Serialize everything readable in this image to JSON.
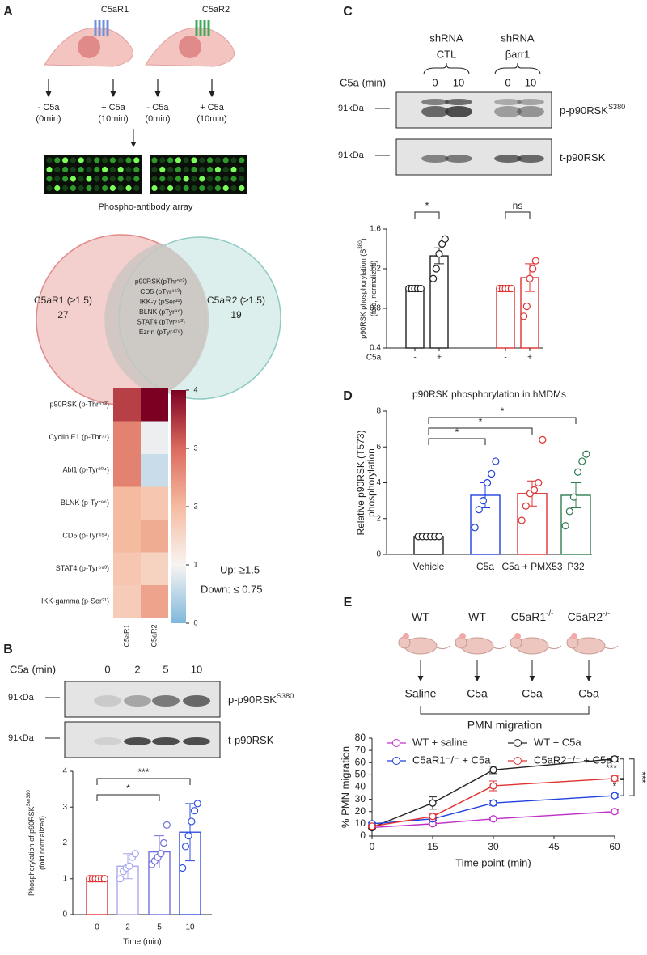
{
  "panel_labels": [
    "A",
    "B",
    "C",
    "D",
    "E"
  ],
  "diagram_a": {
    "receptors": [
      "C5aR1",
      "C5aR2"
    ],
    "treatments": [
      [
        "- C5a",
        "(0min)"
      ],
      [
        "+ C5a",
        "(10min)"
      ],
      [
        "- C5a",
        "(0min)"
      ],
      [
        "+ C5a",
        "(10min)"
      ]
    ],
    "array_caption": "Phospho-antibody array"
  },
  "venn": {
    "left_label": "C5aR1 (≥1.5)",
    "left_count": 27,
    "right_label": "C5aR2 (≥1.5)",
    "right_count": 19,
    "overlap": [
      "p90RSK(pThr⁵⁷³)",
      "CD5 (pTyr⁴⁵³)",
      "IKK-γ (pSer³¹)",
      "BLNK (pTyr⁹⁶)",
      "STAT4 (pTyr⁶⁹³)",
      "Ezrin (pTyr⁴⁷⁸)"
    ]
  },
  "blot_b": {
    "treatment_label": "C5a (min)",
    "lanes": [
      "0",
      "2",
      "5",
      "10"
    ],
    "size_labels": [
      "91kDa",
      "91kDa"
    ],
    "bands": [
      {
        "text": "p-p90RSK",
        "sup": "S380"
      },
      {
        "text": "t-p90RSK"
      }
    ]
  },
  "blot_c": {
    "groups": [
      [
        "shRNA",
        "CTL"
      ],
      [
        "shRNA",
        "βarr1"
      ]
    ],
    "treatment_label": "C5a (min)",
    "lanes": [
      "0",
      "10",
      "0",
      "10"
    ],
    "size_labels": [
      "91kDa",
      "91kDa"
    ],
    "bands": [
      {
        "text": "p-p90RSK",
        "sup": "S380"
      },
      {
        "text": "t-p90RSK"
      }
    ]
  },
  "diagram_e": {
    "genotypes": [
      {
        "text": "WT"
      },
      {
        "text": "WT"
      },
      {
        "text": "C5aR1",
        "sup": "-/-"
      },
      {
        "text": "C5aR2",
        "sup": "-/-"
      }
    ],
    "treatments": [
      "Saline",
      "C5a",
      "C5a",
      "C5a"
    ],
    "caption": "PMN migration"
  },
  "chart_data": [
    {
      "type": "heatmap",
      "categories": [
        "p90RSK (p-Thr⁵⁷³)",
        "Cyclin E1 (p-Thr⁷⁷)",
        "Abl1 (p-Tyr²⁰⁴)",
        "BLNK (p-Tyr⁹⁶)",
        "CD5 (p-Tyr⁴⁵³)",
        "STAT4 (p-Tyr⁶⁹³)",
        "IKK-gamma (p-Ser³¹)"
      ],
      "columns": [
        "C5aR1",
        "C5aR2"
      ],
      "values": [
        [
          3.4,
          4.0
        ],
        [
          2.7,
          0.9
        ],
        [
          2.7,
          0.6
        ],
        [
          2.0,
          1.8
        ],
        [
          2.0,
          2.2
        ],
        [
          1.8,
          1.6
        ],
        [
          1.7,
          2.3
        ]
      ],
      "vlim": [
        0,
        4
      ],
      "ticks": [
        0,
        1,
        2,
        3,
        4
      ],
      "annotations": [
        "Up: ≥1.5",
        "Down: ≤ 0.75"
      ]
    },
    {
      "type": "bar",
      "categories": [
        "0",
        "2",
        "5",
        "10"
      ],
      "values": [
        1.0,
        1.35,
        1.75,
        2.3
      ],
      "errors": [
        0,
        0.35,
        0.45,
        0.8
      ],
      "points": [
        [
          1,
          1,
          1,
          1,
          1,
          1
        ],
        [
          1.0,
          1.2,
          1.3,
          1.35,
          1.6,
          1.7
        ],
        [
          1.4,
          1.5,
          1.6,
          1.7,
          2.0,
          2.5
        ],
        [
          1.3,
          1.9,
          2.2,
          2.6,
          2.9,
          3.1
        ]
      ],
      "colors": [
        "#e03030",
        "#a8a8f0",
        "#7070e0",
        "#3050e0"
      ],
      "ylim": [
        0,
        4
      ],
      "yticks": [
        0,
        1,
        2,
        3,
        4
      ],
      "ylabel": [
        {
          "text": "Phosphorylation of p90RSK",
          "sup": "Ser380"
        },
        {
          "text": "(fold normalized)"
        }
      ],
      "xlabel": "Time (min)",
      "annotations": [
        "*",
        "***"
      ]
    },
    {
      "type": "bar",
      "categories": [
        "-",
        "+",
        "-",
        "+"
      ],
      "values": [
        1.0,
        1.33,
        1.0,
        1.11
      ],
      "errors": [
        0,
        0.08,
        0,
        0.14
      ],
      "points": [
        [
          1,
          1,
          1,
          1,
          1
        ],
        [
          1.1,
          1.2,
          1.35,
          1.45,
          1.5
        ],
        [
          1,
          1,
          1,
          1,
          1
        ],
        [
          0.72,
          0.82,
          1.1,
          1.2,
          1.28
        ]
      ],
      "colors": [
        "#222222",
        "#222222",
        "#e03030",
        "#e03030"
      ],
      "ylim": [
        0.4,
        1.6
      ],
      "yticks": [
        0.4,
        0.8,
        1.2,
        1.6
      ],
      "ylabel": [
        {
          "text": "p90RSK phosphorylation (S",
          "sup": "380",
          "tail": ")"
        },
        {
          "text": "(fold, normalized)"
        }
      ],
      "xlabel": "C5a",
      "annotations": [
        "*",
        "ns"
      ]
    },
    {
      "type": "bar",
      "title": "p90RSK phosphorylation in hMDMs",
      "categories": [
        "Vehicle",
        "C5a",
        "C5a + PMX53",
        "P32"
      ],
      "values": [
        1.0,
        3.3,
        3.4,
        3.3
      ],
      "errors": [
        0,
        0.7,
        0.7,
        0.7
      ],
      "points": [
        [
          1,
          1,
          1,
          1,
          1,
          1
        ],
        [
          1.5,
          2.5,
          3.0,
          4.0,
          4.5,
          5.2
        ],
        [
          1.9,
          2.7,
          3.4,
          3.6,
          4.0,
          6.4
        ],
        [
          1.6,
          2.4,
          3.2,
          4.6,
          5.2,
          5.6
        ]
      ],
      "colors": [
        "#222222",
        "#2040e0",
        "#e03030",
        "#2e7d50"
      ],
      "ylim": [
        0,
        8
      ],
      "yticks": [
        0,
        2,
        4,
        6,
        8
      ],
      "ylabel": [
        {
          "text": "Relative p90RSK (T573)"
        },
        {
          "text": "phosphorylation"
        }
      ],
      "annotations": [
        "*",
        "*",
        "*"
      ]
    },
    {
      "type": "line",
      "x": [
        0,
        15,
        30,
        60
      ],
      "xlim": [
        0,
        60
      ],
      "xticks": [
        0,
        15,
        30,
        45,
        60
      ],
      "ylim": [
        0,
        80
      ],
      "yticks": [
        0,
        10,
        20,
        30,
        40,
        50,
        60,
        70,
        80
      ],
      "xlabel": "Time point (min)",
      "ylabel": "% PMN migration",
      "annotations": [
        "***",
        "*",
        "***"
      ],
      "series": [
        {
          "name": "WT + saline",
          "color": "#c030c8",
          "values": [
            7,
            10,
            14,
            20
          ],
          "errors": [
            1,
            1,
            1,
            1.5
          ]
        },
        {
          "name": "WT + C5a",
          "color": "#222222",
          "values": [
            7,
            27,
            54,
            63
          ],
          "errors": [
            1,
            5,
            3,
            2
          ]
        },
        {
          "name": "C5aR1⁻/⁻ + C5a",
          "color": "#2040e0",
          "values": [
            10,
            14,
            27,
            33
          ],
          "errors": [
            1,
            1,
            2,
            1.5
          ]
        },
        {
          "name": "C5aR2⁻/⁻ + C5a",
          "color": "#e03030",
          "values": [
            8,
            16,
            41,
            47
          ],
          "errors": [
            1,
            2,
            4,
            2
          ]
        }
      ]
    }
  ]
}
